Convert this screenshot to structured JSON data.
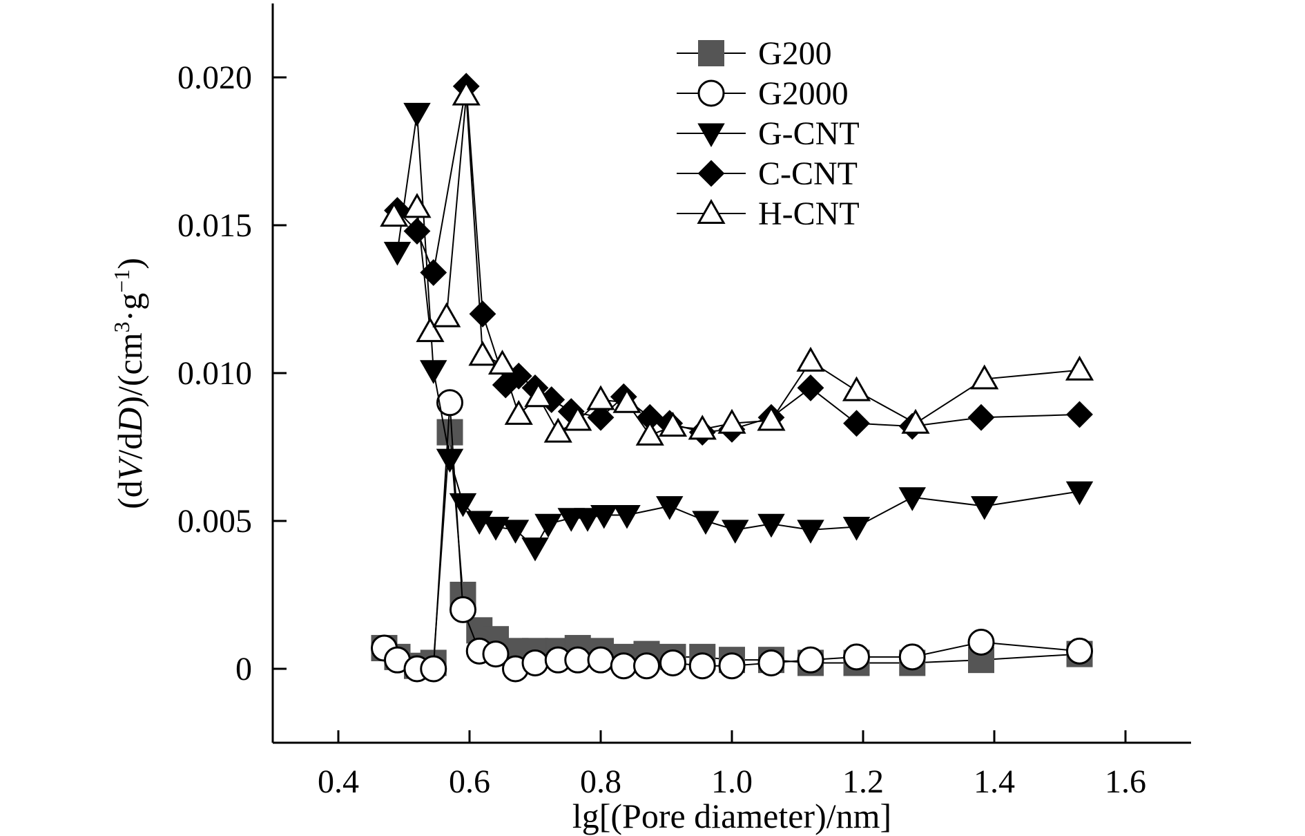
{
  "chart_data": {
    "type": "line",
    "xlabel": "lg[(Pore diameter)/nm]",
    "ylabel": {
      "parts": [
        "(d",
        "V",
        "/d",
        "D",
        ")/(cm",
        "3",
        "·g",
        "−1",
        ")"
      ]
    },
    "xlim": [
      0.3,
      1.7
    ],
    "ylim": [
      -0.0025,
      0.0225
    ],
    "xticks": [
      0.4,
      0.6,
      0.8,
      1.0,
      1.2,
      1.4,
      1.6
    ],
    "xtick_labels": [
      "0.4",
      "0.6",
      "0.8",
      "1.0",
      "1.2",
      "1.4",
      "1.6"
    ],
    "yticks": [
      0,
      0.005,
      0.01,
      0.015,
      0.02
    ],
    "ytick_labels": [
      "0",
      "0.005",
      "0.010",
      "0.015",
      "0.020"
    ],
    "grid": false,
    "legend_position": "top-center",
    "series": [
      {
        "name": "G200",
        "marker": "square",
        "color": "#555555",
        "x": [
          0.47,
          0.49,
          0.52,
          0.545,
          0.57,
          0.59,
          0.615,
          0.64,
          0.67,
          0.7,
          0.735,
          0.765,
          0.8,
          0.835,
          0.87,
          0.91,
          0.955,
          1.0,
          1.06,
          1.12,
          1.19,
          1.275,
          1.38,
          1.53
        ],
        "y": [
          0.0007,
          0.0004,
          0.0001,
          0.0002,
          0.008,
          0.0025,
          0.0013,
          0.001,
          0.0006,
          0.0006,
          0.0006,
          0.0007,
          0.0006,
          0.0004,
          0.0005,
          0.0004,
          0.0004,
          0.0003,
          0.0003,
          0.0002,
          0.0002,
          0.0002,
          0.0003,
          0.0005
        ]
      },
      {
        "name": "G2000",
        "marker": "circle-open",
        "color": "#000000",
        "x": [
          0.47,
          0.49,
          0.52,
          0.545,
          0.57,
          0.59,
          0.615,
          0.64,
          0.67,
          0.7,
          0.735,
          0.765,
          0.8,
          0.835,
          0.87,
          0.91,
          0.955,
          1.0,
          1.06,
          1.12,
          1.19,
          1.275,
          1.38,
          1.53
        ],
        "y": [
          0.0007,
          0.0003,
          0.0,
          0.0,
          0.009,
          0.002,
          0.0006,
          0.0005,
          0.0,
          0.0002,
          0.0003,
          0.0003,
          0.0003,
          0.0001,
          0.0001,
          0.0002,
          0.0001,
          0.0001,
          0.0002,
          0.0003,
          0.0004,
          0.0004,
          0.0009,
          0.0006
        ]
      },
      {
        "name": "G-CNT",
        "marker": "triangle-down",
        "color": "#000000",
        "x": [
          0.49,
          0.52,
          0.545,
          0.57,
          0.59,
          0.615,
          0.64,
          0.67,
          0.7,
          0.72,
          0.755,
          0.78,
          0.805,
          0.84,
          0.905,
          0.96,
          1.005,
          1.06,
          1.12,
          1.19,
          1.275,
          1.385,
          1.53
        ],
        "y": [
          0.0141,
          0.0188,
          0.0101,
          0.0071,
          0.0056,
          0.005,
          0.0048,
          0.0047,
          0.0041,
          0.0049,
          0.0051,
          0.0051,
          0.0052,
          0.0052,
          0.0055,
          0.005,
          0.0047,
          0.0049,
          0.0047,
          0.0048,
          0.0058,
          0.0055,
          0.006
        ]
      },
      {
        "name": "C-CNT",
        "marker": "diamond",
        "color": "#000000",
        "x": [
          0.49,
          0.52,
          0.545,
          0.595,
          0.62,
          0.655,
          0.675,
          0.7,
          0.725,
          0.755,
          0.8,
          0.835,
          0.875,
          0.905,
          0.955,
          1.0,
          1.06,
          1.12,
          1.19,
          1.275,
          1.38,
          1.53
        ],
        "y": [
          0.0155,
          0.0148,
          0.0134,
          0.0197,
          0.012,
          0.0096,
          0.0099,
          0.0095,
          0.0091,
          0.0087,
          0.0085,
          0.0092,
          0.0085,
          0.0083,
          0.008,
          0.0081,
          0.0085,
          0.0095,
          0.0083,
          0.0082,
          0.0085,
          0.0086
        ]
      },
      {
        "name": "H-CNT",
        "marker": "triangle-up",
        "color": "#000000",
        "x": [
          0.485,
          0.52,
          0.54,
          0.565,
          0.595,
          0.62,
          0.65,
          0.675,
          0.705,
          0.735,
          0.765,
          0.8,
          0.84,
          0.875,
          0.91,
          0.955,
          1.0,
          1.06,
          1.12,
          1.19,
          1.28,
          1.385,
          1.53
        ],
        "y": [
          0.0153,
          0.0156,
          0.0114,
          0.0119,
          0.0194,
          0.0106,
          0.0103,
          0.0086,
          0.0092,
          0.008,
          0.0084,
          0.0091,
          0.009,
          0.0079,
          0.0082,
          0.0081,
          0.0083,
          0.0084,
          0.0104,
          0.0094,
          0.0083,
          0.0098,
          0.0101
        ]
      }
    ]
  }
}
